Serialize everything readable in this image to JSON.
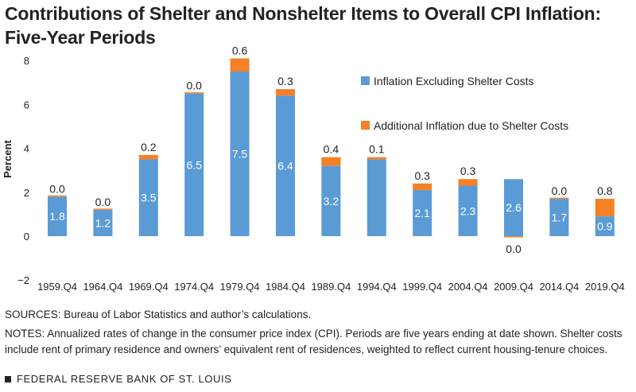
{
  "title_line1": "Contributions of Shelter and Nonshelter Items to Overall CPI Inflation:",
  "title_line2": "Five-Year Periods",
  "colors": {
    "nonshelter": "#5b9bd5",
    "shelter": "#f58026",
    "text": "#222222"
  },
  "chart_data": {
    "type": "bar",
    "stacked": true,
    "title": "Contributions of Shelter and Nonshelter Items to Overall CPI Inflation: Five-Year Periods",
    "ylabel": "Percent",
    "xlabel": "",
    "ylim": [
      -2,
      8
    ],
    "yticks": [
      "8",
      "6",
      "4",
      "2",
      "0",
      "−2"
    ],
    "ytick_values": [
      8,
      6,
      4,
      2,
      0,
      -2
    ],
    "categories": [
      "1959.Q4",
      "1964.Q4",
      "1969.Q4",
      "1974.Q4",
      "1979.Q4",
      "1984.Q4",
      "1989.Q4",
      "1994.Q4",
      "1999.Q4",
      "2004.Q4",
      "2009.Q4",
      "2014.Q4",
      "2019.Q4"
    ],
    "legend_position": "top-right",
    "series": [
      {
        "name": "Inflation Excluding Shelter Costs",
        "values": [
          1.8,
          1.2,
          3.5,
          6.5,
          7.5,
          6.4,
          3.2,
          3.5,
          2.1,
          2.3,
          2.6,
          1.7,
          0.9
        ],
        "labels": [
          "1.8",
          "1.2",
          "3.5",
          "6.5",
          "7.5",
          "6.4",
          "3.2",
          "3.5",
          "2.1",
          "2.3",
          "2.6",
          "1.7",
          "0.9"
        ],
        "show_label": [
          true,
          true,
          true,
          true,
          true,
          true,
          true,
          false,
          true,
          true,
          true,
          true,
          true
        ]
      },
      {
        "name": "Additional Inflation due to Shelter Costs",
        "values": [
          0.0,
          0.0,
          0.2,
          0.0,
          0.6,
          0.3,
          0.4,
          0.1,
          0.3,
          0.3,
          -0.04,
          0.0,
          0.8
        ],
        "labels": [
          "0.0",
          "0.0",
          "0.2",
          "0.0",
          "0.6",
          "0.3",
          "0.4",
          "0.1",
          "0.3",
          "0.3",
          "0.0",
          "0.0",
          "0.8"
        ]
      }
    ]
  },
  "sources": "SOURCES: Bureau of Labor Statistics and author’s calculations.",
  "notes": "NOTES: Annualized rates of change in the consumer price index (CPI). Periods are five years ending at date shown. Shelter costs include rent of primary residence and owners’ equivalent rent of residences, weighted to reflect current housing-tenure choices.",
  "footer": "FEDERAL RESERVE BANK OF ST. LOUIS"
}
